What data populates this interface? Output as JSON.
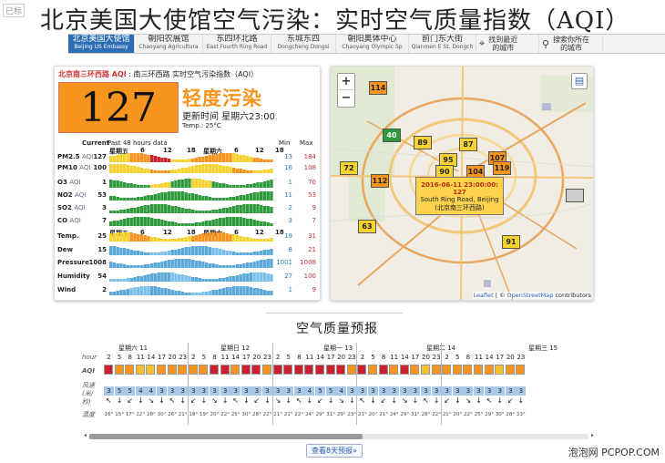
{
  "header": {
    "corner_tag": "已标",
    "title": "北京美国大使馆空气污染：实时空气质量指数（AQI）"
  },
  "tabs": [
    {
      "zh": "北京美国大使馆",
      "en": "Beijing US Embassy",
      "active": true
    },
    {
      "zh": "朝阳农展馆",
      "en": "Chaoyang Agricultura"
    },
    {
      "zh": "东四环北路",
      "en": "East Fourth Ring Road"
    },
    {
      "zh": "东城东四",
      "en": "Dongcheng Dongsi"
    },
    {
      "zh": "朝阳奥体中心",
      "en": "Chaoyang Olympic Sp"
    },
    {
      "zh": "前门东大街",
      "en": "Qianmen E St. Dongch"
    }
  ],
  "tools": {
    "nearest": "找到最近的城市",
    "search": "搜索你所在的城市"
  },
  "station": {
    "name": "北京南三环西路 AQI",
    "desc": "南三环西路 实时空气污染指数（AQI）",
    "aqi": "127",
    "level": "轻度污染",
    "updated": "更新时间 星期六23:00",
    "temp": "Temp.: 25°C",
    "color": "#f7941d"
  },
  "table": {
    "current": "Current",
    "past": "Past 48 hours data",
    "min": "Min",
    "max": "Max",
    "days_top": [
      "星期五",
      "6",
      "12",
      "18",
      "星期六",
      "6",
      "12",
      "18"
    ],
    "days_mid": [
      "星期五",
      "6",
      "12",
      "18",
      "星期六",
      "6",
      "12",
      "18"
    ]
  },
  "pollutants": [
    {
      "name": "PM2.5",
      "unit": "AQI",
      "value": "127",
      "min": "13",
      "max": "184"
    },
    {
      "name": "PM10",
      "unit": "AQI",
      "value": "100",
      "min": "16",
      "max": "108"
    },
    {
      "name": "O3",
      "unit": "AQI",
      "value": "1",
      "min": "1",
      "max": "70"
    },
    {
      "name": "NO2",
      "unit": "AQI",
      "value": "53",
      "min": "11",
      "max": "53"
    },
    {
      "name": "SO2",
      "unit": "AQI",
      "value": "3",
      "min": "2",
      "max": "9"
    },
    {
      "name": "CO",
      "unit": "AQI",
      "value": "7",
      "min": "3",
      "max": "7"
    },
    {
      "name": "Temp.",
      "unit": "",
      "value": "25",
      "min": "19",
      "max": "31"
    },
    {
      "name": "Dew",
      "unit": "",
      "value": "15",
      "min": "8",
      "max": "21"
    },
    {
      "name": "Pressure",
      "unit": "",
      "value": "1008",
      "min": "1001",
      "max": "1008"
    },
    {
      "name": "Humidity",
      "unit": "",
      "value": "54",
      "min": "27",
      "max": "100"
    },
    {
      "name": "Wind",
      "unit": "",
      "value": "2",
      "min": "1",
      "max": "9"
    }
  ],
  "map": {
    "zoom_in": "+",
    "zoom_out": "−",
    "markers": [
      {
        "v": "114",
        "c": "#f7941d"
      },
      {
        "v": "40",
        "c": "#2e9a3c"
      },
      {
        "v": "89",
        "c": "#f5d22e"
      },
      {
        "v": "87",
        "c": "#f5d22e"
      },
      {
        "v": "95",
        "c": "#f5d22e"
      },
      {
        "v": "107",
        "c": "#f7941d"
      },
      {
        "v": "72",
        "c": "#f5d22e"
      },
      {
        "v": "112",
        "c": "#f7941d"
      },
      {
        "v": "90",
        "c": "#f5d22e"
      },
      {
        "v": "104",
        "c": "#f7941d"
      },
      {
        "v": "119",
        "c": "#f7941d"
      },
      {
        "v": "63",
        "c": "#f5d22e"
      },
      {
        "v": "91",
        "c": "#f5d22e"
      },
      {
        "v": "",
        "c": "#cccccc"
      }
    ],
    "popup": {
      "time": "2016-06-11 23:00:00: 127",
      "en": "South Ring Road, Beijing",
      "zh": "(北京南三环西路)"
    },
    "attribution": {
      "leaflet": "Leaflet",
      "sep": "| ©",
      "osm": "OpenStreetMap",
      "rest": "contributors"
    }
  },
  "forecast": {
    "title": "空气质量预报",
    "labels": {
      "hour": "hour",
      "aqi": "AQI",
      "wind": "风速(米/秒)",
      "temp": "温度"
    },
    "days": [
      "星期六 11",
      "星期日 12",
      "星期一 13",
      "星期二 14",
      "星期三 15"
    ],
    "hours": [
      "2",
      "5",
      "8",
      "11",
      "14",
      "17",
      "20",
      "23",
      "2",
      "5",
      "8",
      "11",
      "14",
      "17",
      "20",
      "23",
      "2",
      "5",
      "8",
      "11",
      "14",
      "17",
      "20",
      "23",
      "2",
      "5",
      "8",
      "11",
      "14",
      "17",
      "20",
      "23",
      "2",
      "5",
      "8",
      "11",
      "14",
      "17",
      "20",
      "23"
    ],
    "aqi_colors": [
      "#cc1f2f",
      "#f7941d",
      "#f7941d",
      "#f5c22e",
      "#f5c22e",
      "#f7941d",
      "#f7941d",
      "#f7941d",
      "#f7941d",
      "#f7941d",
      "#cc1f2f",
      "#cc1f2f",
      "#f7941d",
      "#cc1f2f",
      "#cc1f2f",
      "#f7941d",
      "#cc1f2f",
      "#cc1f2f",
      "#cc1f2f",
      "#cc1f2f",
      "#cc1f2f",
      "#cc1f2f",
      "#cc1f2f",
      "#f7941d",
      "#cc1f2f",
      "#f7941d",
      "#cc1f2f",
      "#f7941d",
      "#cc1f2f",
      "#f7941d",
      "#f5c22e",
      "#f7941d",
      "#f7941d",
      "#f7941d",
      "#f7941d",
      "#f7941d",
      "#f7941d",
      "#f5c22e",
      "#f7941d",
      "#f7941d"
    ],
    "winds": [
      "3",
      "5",
      "5",
      "4",
      "4",
      "3",
      "3",
      "3",
      "3",
      "3",
      "3",
      "3",
      "3",
      "3",
      "3",
      "3",
      "3",
      "3",
      "3",
      "4",
      "5",
      "5",
      "4",
      "3",
      "3",
      "3",
      "3",
      "3",
      "3",
      "3",
      "3",
      "3",
      "3",
      "3",
      "3",
      "3",
      "3",
      "3",
      "3",
      "3"
    ],
    "temps": [
      "16°",
      "15°",
      "17°",
      "22°",
      "28°",
      "30°",
      "26°",
      "21°",
      "18°",
      "19°",
      "20°",
      "22°",
      "25°",
      "30°",
      "28°",
      "22°",
      "21°",
      "21°",
      "22°",
      "24°",
      "29°",
      "31°",
      "29°",
      "23°",
      "21°",
      "20°",
      "21°",
      "24°",
      "29°",
      "31°",
      "28°",
      "22°",
      "21°",
      "20°",
      "22°",
      "25°",
      "29°",
      "30°",
      "28°",
      "23°"
    ]
  },
  "more_button": "查看8天预报»",
  "watermark": {
    "a": "泡泡网",
    "b": "PCPOP.COM"
  }
}
